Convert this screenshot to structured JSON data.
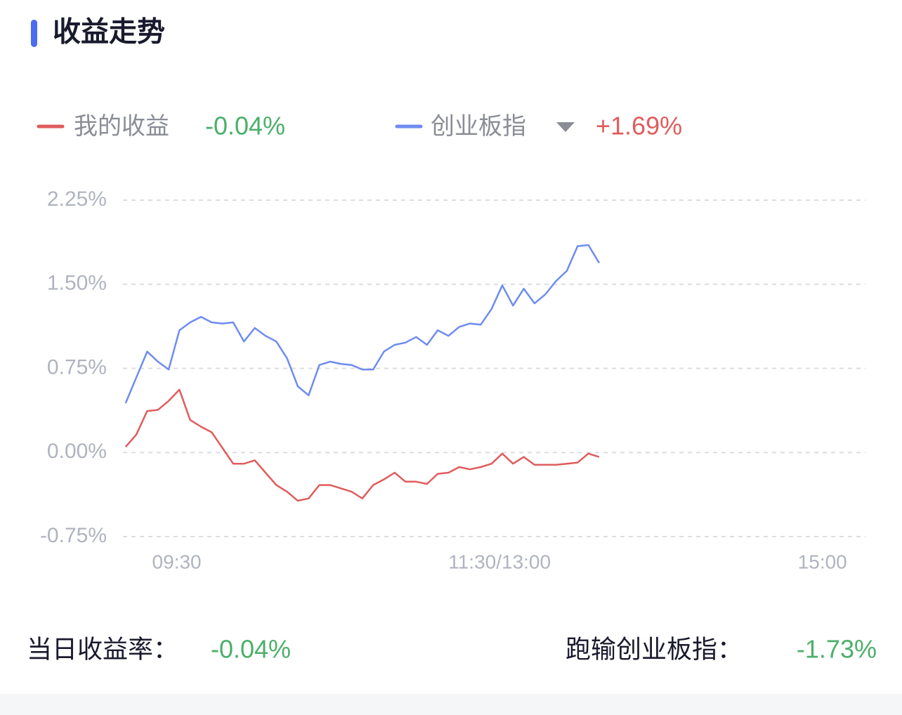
{
  "chart_data": {
    "type": "line",
    "title": "收益走势",
    "x": [
      -19,
      -15,
      -11,
      -7,
      -3,
      1,
      5,
      9,
      13,
      17,
      21,
      25,
      29,
      33,
      37,
      41,
      45,
      49,
      53,
      57,
      61,
      65,
      69,
      73,
      77,
      81,
      85,
      89,
      93,
      97,
      101,
      105,
      109,
      113,
      117,
      121,
      125,
      129,
      133,
      137,
      141,
      145,
      149,
      153,
      157
    ],
    "series": [
      {
        "name": "我的收益",
        "color": "#e05c5c",
        "value_label": "-0.04%",
        "value_color": "#4caf6a",
        "values": [
          0.05,
          0.16,
          0.37,
          0.38,
          0.46,
          0.56,
          0.29,
          0.23,
          0.18,
          0.04,
          -0.1,
          -0.1,
          -0.07,
          -0.18,
          -0.29,
          -0.35,
          -0.43,
          -0.41,
          -0.29,
          -0.29,
          -0.32,
          -0.35,
          -0.41,
          -0.29,
          -0.24,
          -0.18,
          -0.26,
          -0.26,
          -0.28,
          -0.19,
          -0.18,
          -0.13,
          -0.15,
          -0.13,
          -0.1,
          -0.01,
          -0.1,
          -0.04,
          -0.11,
          -0.11,
          -0.11,
          -0.1,
          -0.09,
          -0.01,
          -0.04
        ]
      },
      {
        "name": "创业板指",
        "color": "#6e8cf0",
        "value_label": "+1.69%",
        "value_color": "#e05c5c",
        "values": [
          0.44,
          0.67,
          0.9,
          0.81,
          0.74,
          1.09,
          1.16,
          1.21,
          1.16,
          1.15,
          1.16,
          0.99,
          1.11,
          1.04,
          0.99,
          0.84,
          0.59,
          0.51,
          0.78,
          0.81,
          0.79,
          0.78,
          0.74,
          0.74,
          0.9,
          0.96,
          0.98,
          1.03,
          0.96,
          1.09,
          1.04,
          1.12,
          1.15,
          1.14,
          1.28,
          1.49,
          1.31,
          1.46,
          1.33,
          1.41,
          1.53,
          1.62,
          1.84,
          1.85,
          1.69
        ]
      }
    ],
    "xlim": [
      -20,
      256
    ],
    "xticks": [
      {
        "value": 0,
        "label": "09:30"
      },
      {
        "value": 120,
        "label": "11:30/13:00"
      },
      {
        "value": 240,
        "label": "15:00"
      }
    ],
    "ylim": [
      -0.75,
      2.25
    ],
    "yticks": [
      {
        "value": -0.75,
        "label": "-0.75%"
      },
      {
        "value": 0,
        "label": "0.00%"
      },
      {
        "value": 0.75,
        "label": "0.75%"
      },
      {
        "value": 1.5,
        "label": "1.50%"
      },
      {
        "value": 2.25,
        "label": "2.25%"
      }
    ],
    "grid": true
  },
  "footer": {
    "daily_label": "当日收益率：",
    "daily_value": "-0.04%",
    "compare_label": "跑输创业板指：",
    "compare_value": "-1.73%"
  }
}
